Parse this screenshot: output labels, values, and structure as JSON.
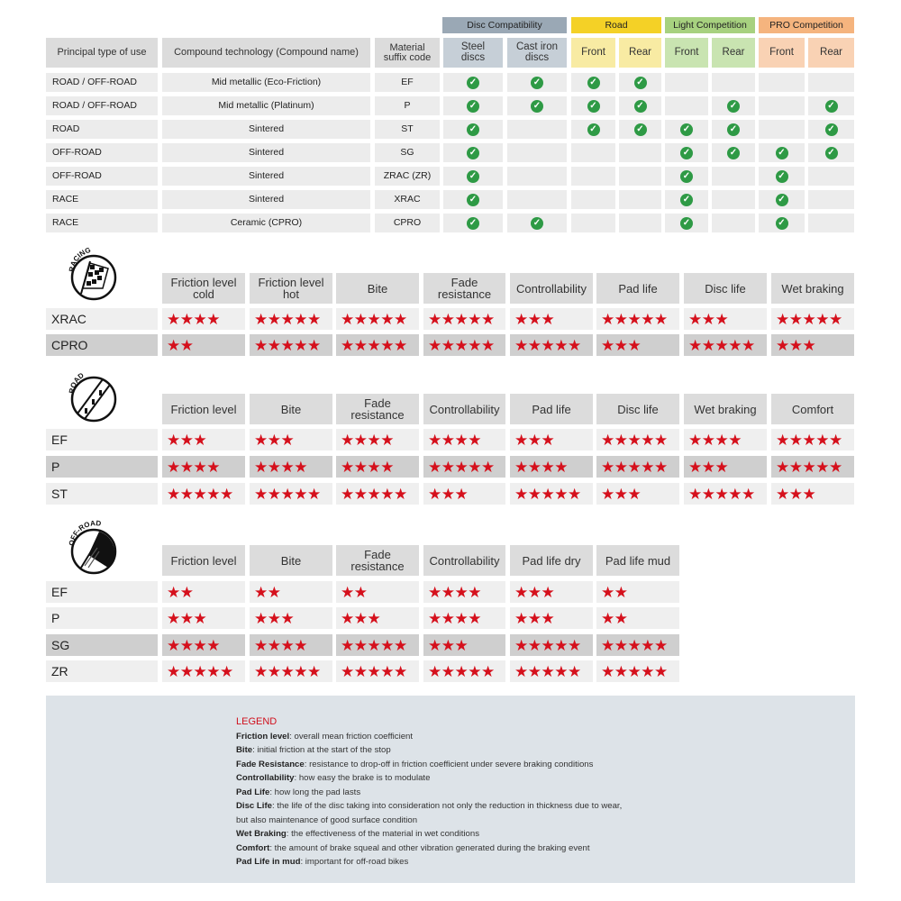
{
  "compat_table": {
    "group_headers": [
      {
        "label": "Disc Compatibility",
        "color": "#9aa8b5",
        "sub_color": "#c6cfd7"
      },
      {
        "label": "Road",
        "color": "#f4d126",
        "sub_color": "#f8eba3"
      },
      {
        "label": "Light Competition",
        "color": "#a7d17f",
        "sub_color": "#c9e4b1"
      },
      {
        "label": "PRO Competition",
        "color": "#f5b47e",
        "sub_color": "#f9d2b4"
      }
    ],
    "headers": [
      "Principal type of use",
      "Compound technology (Compound name)",
      "Material suffix code",
      "Steel discs",
      "Cast iron discs",
      "Front",
      "Rear",
      "Front",
      "Rear",
      "Front",
      "Rear"
    ],
    "rows": [
      {
        "use": "ROAD / OFF-ROAD",
        "compound": "Mid metallic (Eco-Friction)",
        "code": "EF",
        "checks": [
          true,
          true,
          true,
          true,
          false,
          false,
          false,
          false
        ]
      },
      {
        "use": "ROAD / OFF-ROAD",
        "compound": "Mid metallic (Platinum)",
        "code": "P",
        "checks": [
          true,
          true,
          true,
          true,
          false,
          true,
          false,
          true
        ]
      },
      {
        "use": "ROAD",
        "compound": "Sintered",
        "code": "ST",
        "checks": [
          true,
          false,
          true,
          true,
          true,
          true,
          false,
          true
        ]
      },
      {
        "use": "OFF-ROAD",
        "compound": "Sintered",
        "code": "SG",
        "checks": [
          true,
          false,
          false,
          false,
          true,
          true,
          true,
          true
        ]
      },
      {
        "use": "OFF-ROAD",
        "compound": "Sintered",
        "code": "ZRAC (ZR)",
        "checks": [
          true,
          false,
          false,
          false,
          true,
          false,
          true,
          false
        ]
      },
      {
        "use": "RACE",
        "compound": "Sintered",
        "code": "XRAC",
        "checks": [
          true,
          false,
          false,
          false,
          true,
          false,
          true,
          false
        ]
      },
      {
        "use": "RACE",
        "compound": "Ceramic (CPRO)",
        "code": "CPRO",
        "checks": [
          true,
          true,
          false,
          false,
          true,
          false,
          true,
          false
        ]
      }
    ],
    "check_color": "#2e9a45"
  },
  "ratings": [
    {
      "icon_label": "RACING",
      "icon": "checkered-flag-icon",
      "headers": [
        "Friction level cold",
        "Friction level hot",
        "Bite",
        "Fade resistance",
        "Controllability",
        "Pad life",
        "Disc life",
        "Wet braking"
      ],
      "rows": [
        {
          "code": "XRAC",
          "stars": [
            4,
            5,
            5,
            5,
            3,
            5,
            3,
            5
          ]
        },
        {
          "code": "CPRO",
          "stars": [
            2,
            5,
            5,
            5,
            5,
            3,
            5,
            3
          ]
        }
      ]
    },
    {
      "icon_label": "ROAD",
      "icon": "road-icon",
      "headers": [
        "Friction level",
        "Bite",
        "Fade resistance",
        "Controllability",
        "Pad life",
        "Disc life",
        "Wet braking",
        "Comfort"
      ],
      "rows": [
        {
          "code": "EF",
          "stars": [
            3,
            3,
            4,
            4,
            3,
            5,
            4,
            5
          ]
        },
        {
          "code": "P",
          "stars": [
            4,
            4,
            4,
            5,
            4,
            5,
            3,
            5
          ]
        },
        {
          "code": "ST",
          "stars": [
            5,
            5,
            5,
            3,
            5,
            3,
            5,
            3
          ]
        }
      ]
    },
    {
      "icon_label": "OFF-ROAD",
      "icon": "off-road-icon",
      "headers": [
        "Friction level",
        "Bite",
        "Fade resistance",
        "Controllability",
        "Pad life dry",
        "Pad life mud"
      ],
      "rows": [
        {
          "code": "EF",
          "stars": [
            2,
            2,
            2,
            4,
            3,
            2
          ]
        },
        {
          "code": "P",
          "stars": [
            3,
            3,
            3,
            4,
            3,
            2
          ]
        },
        {
          "code": "SG",
          "stars": [
            4,
            4,
            5,
            3,
            5,
            5
          ]
        },
        {
          "code": "ZR",
          "stars": [
            5,
            5,
            5,
            5,
            5,
            5
          ]
        }
      ]
    }
  ],
  "star_color": "#d5101c",
  "legend": {
    "title": "LEGEND",
    "items": [
      {
        "term": "Friction level",
        "desc": ": overall mean friction coefficient"
      },
      {
        "term": "Bite",
        "desc": ": initial friction at the start of the stop"
      },
      {
        "term": "Fade Resistance",
        "desc": ": resistance to drop-off in friction coefficient under severe braking conditions"
      },
      {
        "term": "Controllability",
        "desc": ": how easy the brake is to modulate"
      },
      {
        "term": "Pad Life",
        "desc": ": how long the pad lasts"
      },
      {
        "term": "Disc Life",
        "desc": ": the life of the disc taking into consideration not only the reduction in thickness due to wear,"
      },
      {
        "term": "",
        "desc": "but also maintenance of good surface condition"
      },
      {
        "term": "Wet Braking",
        "desc": ": the effectiveness of the material in wet conditions"
      },
      {
        "term": "Comfort",
        "desc": ": the amount of brake squeal and other vibration generated during the braking event"
      },
      {
        "term": "Pad Life in mud",
        "desc": ": important for off-road bikes"
      }
    ]
  }
}
